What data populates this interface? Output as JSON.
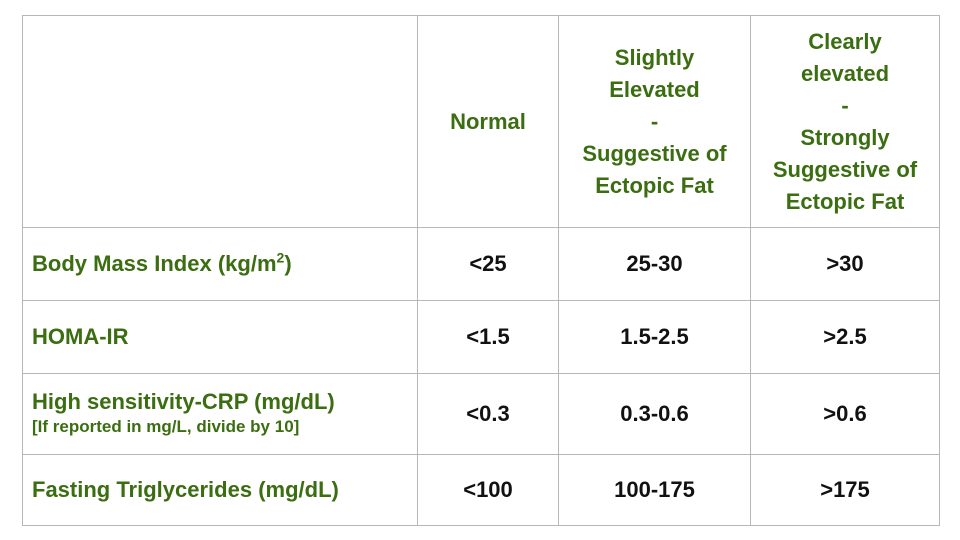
{
  "table": {
    "columns": [
      [
        "Normal"
      ],
      [
        "Slightly",
        "Elevated",
        "-",
        "Suggestive of",
        "Ectopic Fat"
      ],
      [
        "Clearly",
        "elevated",
        "-",
        "Strongly",
        "Suggestive of",
        "Ectopic Fat"
      ]
    ],
    "rows": [
      {
        "label": {
          "text": "Body Mass Index (kg/m",
          "superscript": "2",
          "suffix": ")"
        },
        "values": [
          "<25",
          "25-30",
          ">30"
        ]
      },
      {
        "label": {
          "text": "HOMA-IR"
        },
        "values": [
          "<1.5",
          "1.5-2.5",
          ">2.5"
        ]
      },
      {
        "label": {
          "text": "High sensitivity-CRP (mg/dL)",
          "note": "[If reported in mg/L, divide by 10]"
        },
        "values": [
          "<0.3",
          "0.3-0.6",
          ">0.6"
        ]
      },
      {
        "label": {
          "text": "Fasting Triglycerides (mg/dL)"
        },
        "values": [
          "<100",
          "100-175",
          ">175"
        ]
      }
    ]
  }
}
